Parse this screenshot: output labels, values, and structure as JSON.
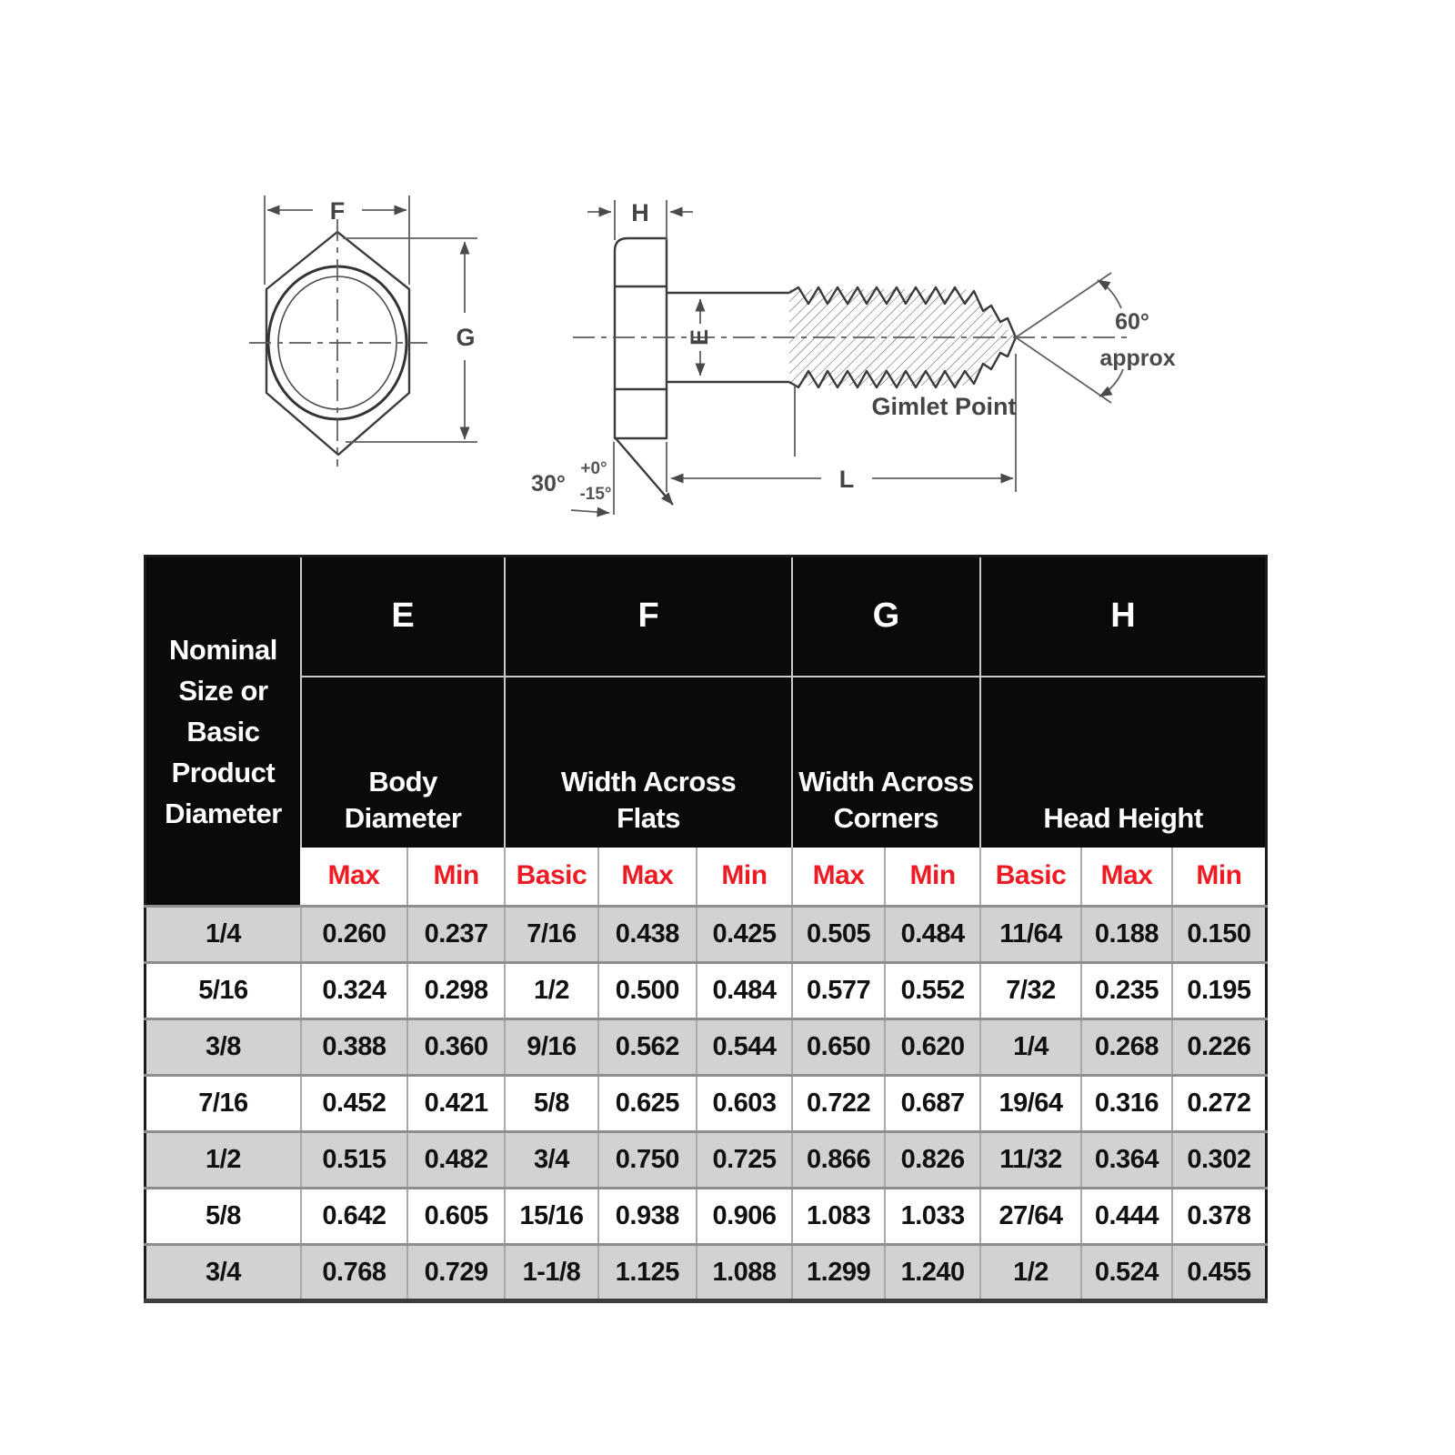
{
  "diagram": {
    "labels": {
      "width_across_flats": "F",
      "width_across_corners": "G",
      "head_height": "H",
      "body_diameter": "E",
      "length": "L",
      "head_chamfer_angle": "30°",
      "tolerance_plus": "+0°",
      "tolerance_minus": "-15°",
      "point_angle": "60°",
      "point_angle_qualifier": "approx",
      "point_name": "Gimlet Point"
    }
  },
  "table": {
    "corner_header": "Nominal\nSize or\nBasic\nProduct\nDiameter",
    "groups": [
      {
        "letter": "E",
        "label": "Body\nDiameter"
      },
      {
        "letter": "F",
        "label": "Width Across\nFlats"
      },
      {
        "letter": "G",
        "label": "Width Across\nCorners"
      },
      {
        "letter": "H",
        "label": "Head Height"
      }
    ],
    "sub_headers": [
      "Max",
      "Min",
      "Basic",
      "Max",
      "Min",
      "Max",
      "Min",
      "Basic",
      "Max",
      "Min"
    ],
    "rows": [
      [
        "1/4",
        "0.260",
        "0.237",
        "7/16",
        "0.438",
        "0.425",
        "0.505",
        "0.484",
        "11/64",
        "0.188",
        "0.150"
      ],
      [
        "5/16",
        "0.324",
        "0.298",
        "1/2",
        "0.500",
        "0.484",
        "0.577",
        "0.552",
        "7/32",
        "0.235",
        "0.195"
      ],
      [
        "3/8",
        "0.388",
        "0.360",
        "9/16",
        "0.562",
        "0.544",
        "0.650",
        "0.620",
        "1/4",
        "0.268",
        "0.226"
      ],
      [
        "7/16",
        "0.452",
        "0.421",
        "5/8",
        "0.625",
        "0.603",
        "0.722",
        "0.687",
        "19/64",
        "0.316",
        "0.272"
      ],
      [
        "1/2",
        "0.515",
        "0.482",
        "3/4",
        "0.750",
        "0.725",
        "0.866",
        "0.826",
        "11/32",
        "0.364",
        "0.302"
      ],
      [
        "5/8",
        "0.642",
        "0.605",
        "15/16",
        "0.938",
        "0.906",
        "1.083",
        "1.033",
        "27/64",
        "0.444",
        "0.378"
      ],
      [
        "3/4",
        "0.768",
        "0.729",
        "1-1/8",
        "1.125",
        "1.088",
        "1.299",
        "1.240",
        "1/2",
        "0.524",
        "0.455"
      ]
    ],
    "colors": {
      "header_bg": "#0a0a0a",
      "header_text": "#ffffff",
      "subheader_text": "#ed1c24",
      "alt_row_bg": "#d2d2d2",
      "row_bg": "#ffffff"
    }
  }
}
